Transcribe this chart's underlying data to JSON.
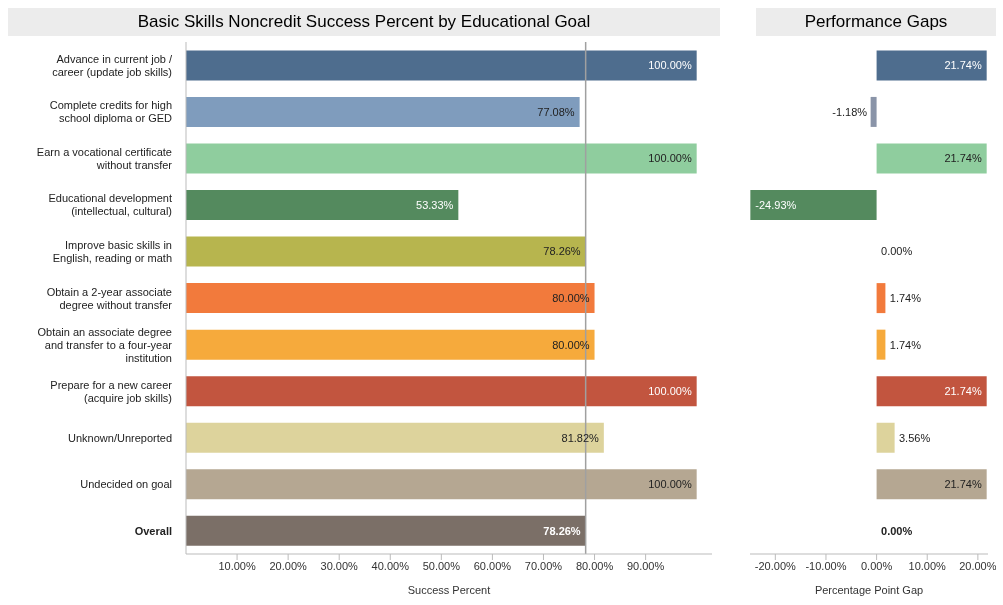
{
  "chart_data": [
    {
      "type": "bar",
      "orientation": "horizontal",
      "title": "Basic Skills Noncredit Success Percent by Educational Goal",
      "xlabel": "Success Percent",
      "categories": [
        "Advance in current job / career (update job skills)",
        "Complete credits for high school diploma or GED",
        "Earn a vocational certificate without transfer",
        "Educational development (intellectual, cultural)",
        "Improve basic skills in English, reading or math",
        "Obtain a 2-year associate degree without transfer",
        "Obtain an associate degree and transfer to a four-year institution",
        "Prepare for a new career (acquire job skills)",
        "Unknown/Unreported",
        "Undecided on goal",
        "Overall"
      ],
      "values": [
        100,
        77.08,
        100,
        53.33,
        78.26,
        80,
        80,
        100,
        81.82,
        100,
        78.26
      ],
      "value_labels": [
        "100.00%",
        "77.08%",
        "100.00%",
        "53.33%",
        "78.26%",
        "80.00%",
        "80.00%",
        "100.00%",
        "81.82%",
        "100.00%",
        "78.26%"
      ],
      "colors": [
        "#4e6d8e",
        "#7f9cbd",
        "#8fcd9e",
        "#548a5e",
        "#b7b54e",
        "#f27a3c",
        "#f6aa3c",
        "#c2553f",
        "#ddd39c",
        "#b5a792",
        "#7b6f67"
      ],
      "xlim": [
        0,
        103
      ],
      "xticks": [
        {
          "value": 10,
          "label": "10.00%"
        },
        {
          "value": 20,
          "label": "20.00%"
        },
        {
          "value": 30,
          "label": "30.00%"
        },
        {
          "value": 40,
          "label": "40.00%"
        },
        {
          "value": 50,
          "label": "50.00%"
        },
        {
          "value": 60,
          "label": "60.00%"
        },
        {
          "value": 70,
          "label": "70.00%"
        },
        {
          "value": 80,
          "label": "80.00%"
        },
        {
          "value": 90,
          "label": "90.00%"
        }
      ],
      "ref_lines": [
        {
          "axis": "x",
          "value": 78.26,
          "color": "#a0a0a0"
        }
      ]
    },
    {
      "type": "bar",
      "orientation": "horizontal",
      "title": "Performance Gaps",
      "xlabel": "Percentage Point Gap",
      "tick_labels": "x",
      "categories": [
        null,
        null,
        null,
        null,
        null,
        null,
        null,
        null,
        null,
        null,
        null
      ],
      "values": [
        21.74,
        -1.18,
        21.74,
        -24.93,
        0,
        1.74,
        1.74,
        21.74,
        3.56,
        21.74,
        0
      ],
      "value_labels": [
        "21.74%",
        "-1.18%",
        "21.74%",
        "-24.93%",
        "0.00%",
        "1.74%",
        "1.74%",
        "21.74%",
        "3.56%",
        "21.74%",
        "0.00%"
      ],
      "colors": [
        "#4e6d8e",
        "#8a94a8",
        "#8fcd9e",
        "#548a5e",
        "#7a7a7a",
        "#f27a3c",
        "#f6aa3c",
        "#c2553f",
        "#ddd39c",
        "#b5a792",
        "#4a4a4a"
      ],
      "xlim": [
        -25,
        22
      ],
      "xticks": [
        {
          "value": -20,
          "label": "-20.00%"
        },
        {
          "value": -10,
          "label": "-10.00%"
        },
        {
          "value": 0,
          "label": "0.00%"
        },
        {
          "value": 10,
          "label": "10.00%"
        },
        {
          "value": 20,
          "label": "20.00%"
        }
      ]
    }
  ]
}
